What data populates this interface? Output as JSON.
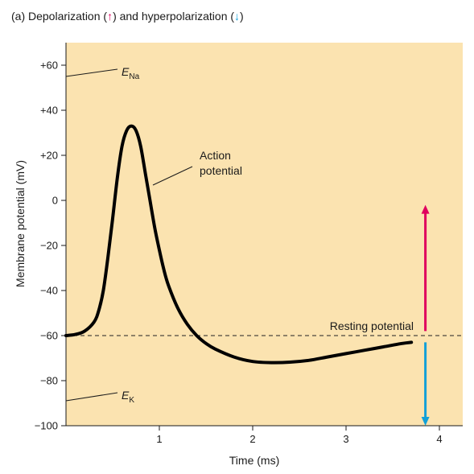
{
  "chart_data": {
    "type": "line",
    "title": {
      "prefix": "(a)  Depolarization (",
      "up_glyph": "↑",
      "middle": ") and hyperpolarization (",
      "down_glyph": "↓",
      "suffix": ")"
    },
    "xlabel": "Time (ms)",
    "ylabel": "Membrane potential (mV)",
    "xlim": [
      0,
      4.25
    ],
    "ylim": [
      -100,
      70
    ],
    "x_ticks": [
      1,
      2,
      3,
      4
    ],
    "x_tick_labels": [
      "1",
      "2",
      "3",
      "4"
    ],
    "y_ticks": [
      60,
      40,
      20,
      0,
      -20,
      -40,
      -60,
      -80,
      -100
    ],
    "y_tick_labels": [
      "+60",
      "+40",
      "+20",
      "0",
      "−20",
      "−40",
      "−60",
      "−80",
      "−100"
    ],
    "series": [
      {
        "x": [
          0,
          0.1,
          0.2,
          0.3,
          0.35,
          0.4,
          0.45,
          0.5,
          0.55,
          0.6,
          0.65,
          0.7,
          0.75,
          0.8,
          0.85,
          0.9,
          0.95,
          1.0,
          1.05,
          1.1,
          1.2,
          1.3,
          1.4,
          1.5,
          1.6,
          1.8,
          2.0,
          2.2,
          2.4,
          2.6,
          2.8,
          3.0,
          3.2,
          3.4,
          3.6,
          3.7
        ],
        "y": [
          -60,
          -59.5,
          -58,
          -54,
          -49,
          -40,
          -25,
          -8,
          10,
          24,
          31,
          33,
          31,
          24,
          12,
          0,
          -12,
          -22,
          -31,
          -38,
          -48,
          -55,
          -60,
          -63.5,
          -66,
          -69.5,
          -71.5,
          -72,
          -71.8,
          -71,
          -69.5,
          -68,
          -66.5,
          -65,
          -63.5,
          -63
        ]
      }
    ],
    "reference_lines": [
      {
        "label": "Resting potential",
        "y": -60,
        "style": "dashed"
      }
    ],
    "annotations": [
      {
        "label": "E",
        "subscript": "Na",
        "y": 55
      },
      {
        "label": "E",
        "subscript": "K",
        "y": -89
      },
      {
        "label_line1": "Action",
        "label_line2": "potential"
      }
    ],
    "arrows": [
      {
        "meaning": "Depolarization",
        "x": 3.85,
        "from": -58,
        "to": -2,
        "color": "#e0005e"
      },
      {
        "meaning": "Hyperpolarization",
        "x": 3.85,
        "from": -63,
        "to": -100,
        "color": "#12a0d8"
      }
    ],
    "colors": {
      "plot_background": "#fbe3b0",
      "curve": "#000000",
      "depolarization_arrow": "#e0005e",
      "hyperpolarization_arrow": "#12a0d8"
    },
    "grid": false
  }
}
